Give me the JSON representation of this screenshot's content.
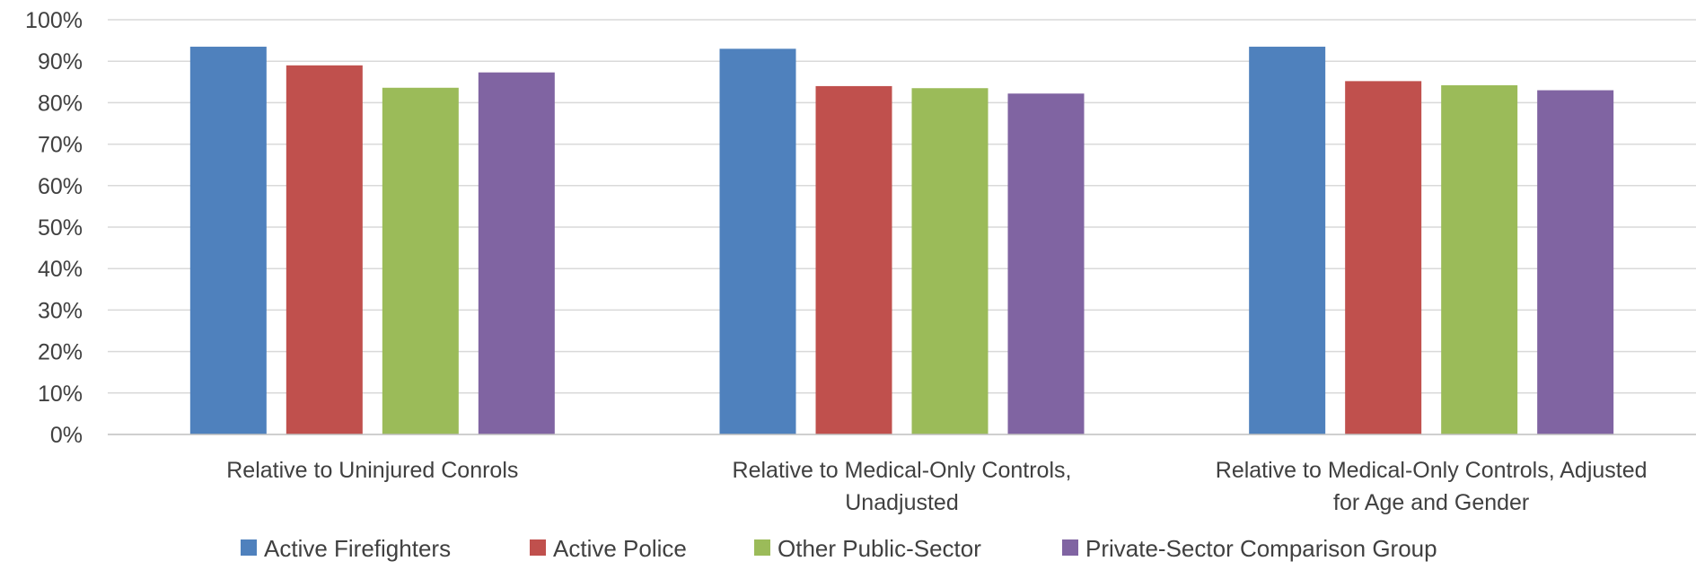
{
  "chart_data": {
    "type": "bar",
    "categories": [
      [
        "Relative to Uninjured Conrols"
      ],
      [
        "Relative to Medical-Only Controls,",
        "Unadjusted"
      ],
      [
        "Relative to Medical-Only Controls, Adjusted",
        "for Age and Gender"
      ]
    ],
    "series": [
      {
        "name": "Active Firefighters",
        "color": "#4f81bd",
        "values": [
          0.935,
          0.93,
          0.935
        ]
      },
      {
        "name": "Active Police",
        "color": "#c0504d",
        "values": [
          0.89,
          0.84,
          0.852
        ]
      },
      {
        "name": "Other Public-Sector",
        "color": "#9bbb59",
        "values": [
          0.836,
          0.835,
          0.842
        ]
      },
      {
        "name": "Private-Sector Comparison Group",
        "color": "#8064a2",
        "values": [
          0.873,
          0.822,
          0.83
        ]
      }
    ],
    "ylim": [
      0,
      1
    ],
    "yticks": [
      "0%",
      "10%",
      "20%",
      "30%",
      "40%",
      "50%",
      "60%",
      "70%",
      "80%",
      "90%",
      "100%"
    ],
    "grid": true,
    "legend_position": "bottom"
  }
}
